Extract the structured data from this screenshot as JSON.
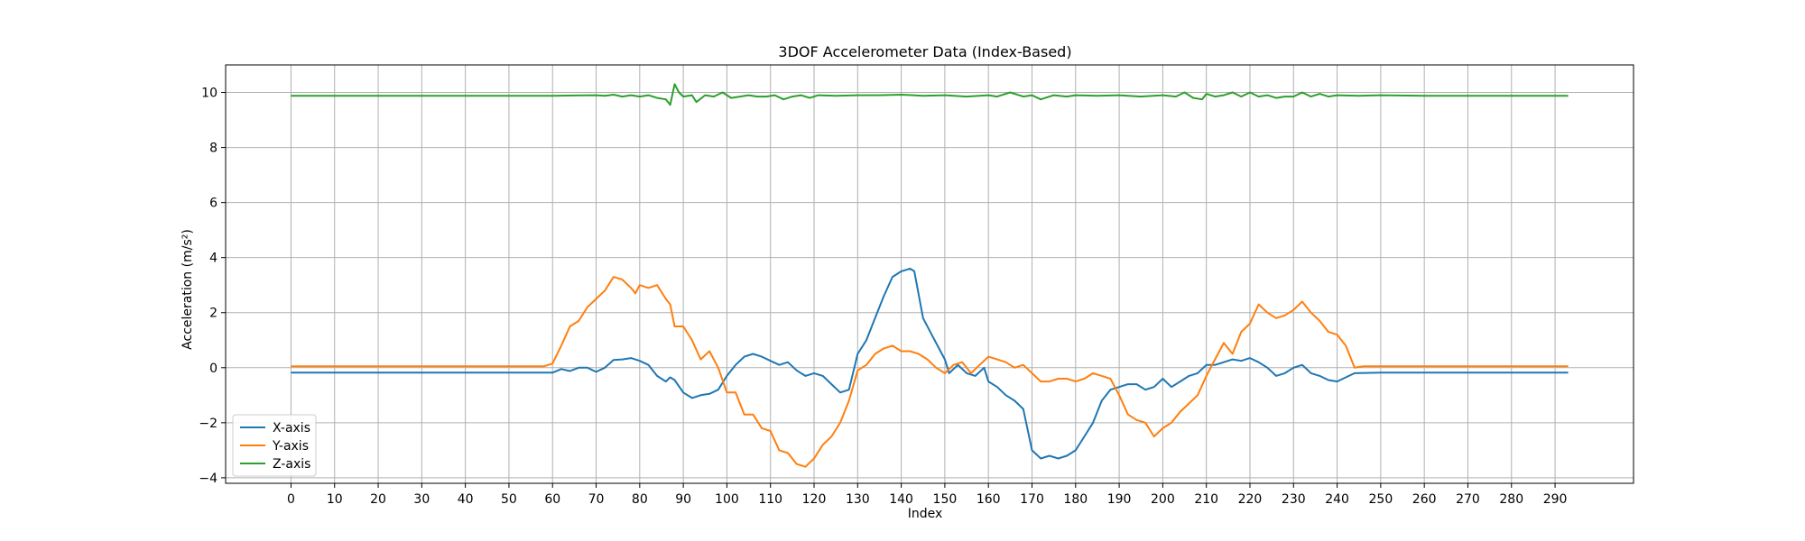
{
  "chart_data": {
    "type": "line",
    "title": "3DOF Accelerometer Data (Index-Based)",
    "xlabel": "Index",
    "ylabel": "Acceleration (m/s²)",
    "xlim": [
      -15,
      308
    ],
    "ylim": [
      -4.2,
      11.0
    ],
    "xticks": [
      0,
      10,
      20,
      30,
      40,
      50,
      60,
      70,
      80,
      90,
      100,
      110,
      120,
      130,
      140,
      150,
      160,
      170,
      180,
      190,
      200,
      210,
      220,
      230,
      240,
      250,
      260,
      270,
      280,
      290
    ],
    "yticks": [
      -4,
      -2,
      0,
      2,
      4,
      6,
      8,
      10
    ],
    "grid": true,
    "legend_position": "lower-left",
    "series": [
      {
        "name": "X-axis",
        "color": "#1f77b4",
        "points": [
          [
            0,
            -0.18
          ],
          [
            10,
            -0.18
          ],
          [
            20,
            -0.18
          ],
          [
            30,
            -0.18
          ],
          [
            40,
            -0.18
          ],
          [
            50,
            -0.18
          ],
          [
            60,
            -0.18
          ],
          [
            62,
            -0.05
          ],
          [
            64,
            -0.12
          ],
          [
            66,
            0.0
          ],
          [
            68,
            0.0
          ],
          [
            70,
            -0.15
          ],
          [
            72,
            0.0
          ],
          [
            74,
            0.28
          ],
          [
            76,
            0.3
          ],
          [
            78,
            0.35
          ],
          [
            80,
            0.25
          ],
          [
            82,
            0.1
          ],
          [
            84,
            -0.3
          ],
          [
            86,
            -0.5
          ],
          [
            87,
            -0.35
          ],
          [
            88,
            -0.45
          ],
          [
            90,
            -0.9
          ],
          [
            92,
            -1.1
          ],
          [
            94,
            -1.0
          ],
          [
            96,
            -0.95
          ],
          [
            98,
            -0.8
          ],
          [
            100,
            -0.3
          ],
          [
            102,
            0.1
          ],
          [
            104,
            0.4
          ],
          [
            106,
            0.5
          ],
          [
            108,
            0.4
          ],
          [
            110,
            0.25
          ],
          [
            112,
            0.1
          ],
          [
            114,
            0.2
          ],
          [
            116,
            -0.1
          ],
          [
            118,
            -0.3
          ],
          [
            120,
            -0.2
          ],
          [
            122,
            -0.3
          ],
          [
            124,
            -0.6
          ],
          [
            126,
            -0.9
          ],
          [
            128,
            -0.8
          ],
          [
            130,
            0.5
          ],
          [
            132,
            1.0
          ],
          [
            134,
            1.8
          ],
          [
            136,
            2.6
          ],
          [
            138,
            3.3
          ],
          [
            140,
            3.5
          ],
          [
            142,
            3.6
          ],
          [
            143,
            3.5
          ],
          [
            145,
            1.8
          ],
          [
            147,
            1.2
          ],
          [
            149,
            0.6
          ],
          [
            150,
            0.3
          ],
          [
            151,
            -0.2
          ],
          [
            153,
            0.1
          ],
          [
            155,
            -0.2
          ],
          [
            157,
            -0.3
          ],
          [
            159,
            0.0
          ],
          [
            160,
            -0.5
          ],
          [
            162,
            -0.7
          ],
          [
            164,
            -1.0
          ],
          [
            166,
            -1.2
          ],
          [
            168,
            -1.5
          ],
          [
            170,
            -3.0
          ],
          [
            172,
            -3.3
          ],
          [
            174,
            -3.2
          ],
          [
            176,
            -3.3
          ],
          [
            178,
            -3.2
          ],
          [
            180,
            -3.0
          ],
          [
            182,
            -2.5
          ],
          [
            184,
            -2.0
          ],
          [
            186,
            -1.2
          ],
          [
            188,
            -0.8
          ],
          [
            190,
            -0.7
          ],
          [
            192,
            -0.6
          ],
          [
            194,
            -0.6
          ],
          [
            196,
            -0.8
          ],
          [
            198,
            -0.7
          ],
          [
            200,
            -0.4
          ],
          [
            202,
            -0.7
          ],
          [
            204,
            -0.5
          ],
          [
            206,
            -0.3
          ],
          [
            208,
            -0.2
          ],
          [
            210,
            0.1
          ],
          [
            212,
            0.1
          ],
          [
            214,
            0.2
          ],
          [
            216,
            0.3
          ],
          [
            218,
            0.25
          ],
          [
            220,
            0.35
          ],
          [
            222,
            0.2
          ],
          [
            224,
            0.0
          ],
          [
            226,
            -0.3
          ],
          [
            228,
            -0.2
          ],
          [
            230,
            0.0
          ],
          [
            232,
            0.1
          ],
          [
            234,
            -0.2
          ],
          [
            236,
            -0.3
          ],
          [
            238,
            -0.45
          ],
          [
            240,
            -0.5
          ],
          [
            242,
            -0.35
          ],
          [
            244,
            -0.2
          ],
          [
            250,
            -0.18
          ],
          [
            260,
            -0.18
          ],
          [
            270,
            -0.18
          ],
          [
            280,
            -0.18
          ],
          [
            290,
            -0.18
          ],
          [
            293,
            -0.18
          ]
        ]
      },
      {
        "name": "Y-axis",
        "color": "#ff7f0e",
        "points": [
          [
            0,
            0.05
          ],
          [
            10,
            0.05
          ],
          [
            20,
            0.05
          ],
          [
            30,
            0.05
          ],
          [
            40,
            0.05
          ],
          [
            50,
            0.05
          ],
          [
            58,
            0.05
          ],
          [
            60,
            0.15
          ],
          [
            62,
            0.8
          ],
          [
            64,
            1.5
          ],
          [
            66,
            1.7
          ],
          [
            68,
            2.2
          ],
          [
            70,
            2.5
          ],
          [
            72,
            2.8
          ],
          [
            74,
            3.3
          ],
          [
            76,
            3.2
          ],
          [
            78,
            2.9
          ],
          [
            79,
            2.7
          ],
          [
            80,
            3.0
          ],
          [
            82,
            2.9
          ],
          [
            84,
            3.0
          ],
          [
            86,
            2.5
          ],
          [
            87,
            2.3
          ],
          [
            88,
            1.5
          ],
          [
            90,
            1.5
          ],
          [
            92,
            1.0
          ],
          [
            94,
            0.3
          ],
          [
            96,
            0.6
          ],
          [
            98,
            0.0
          ],
          [
            100,
            -0.9
          ],
          [
            102,
            -0.9
          ],
          [
            104,
            -1.7
          ],
          [
            106,
            -1.7
          ],
          [
            108,
            -2.2
          ],
          [
            110,
            -2.3
          ],
          [
            112,
            -3.0
          ],
          [
            114,
            -3.1
          ],
          [
            116,
            -3.5
          ],
          [
            118,
            -3.6
          ],
          [
            120,
            -3.3
          ],
          [
            122,
            -2.8
          ],
          [
            124,
            -2.5
          ],
          [
            126,
            -2.0
          ],
          [
            128,
            -1.2
          ],
          [
            130,
            -0.1
          ],
          [
            132,
            0.1
          ],
          [
            134,
            0.5
          ],
          [
            136,
            0.7
          ],
          [
            138,
            0.8
          ],
          [
            140,
            0.6
          ],
          [
            142,
            0.6
          ],
          [
            144,
            0.5
          ],
          [
            146,
            0.3
          ],
          [
            148,
            0.0
          ],
          [
            150,
            -0.2
          ],
          [
            152,
            0.1
          ],
          [
            154,
            0.2
          ],
          [
            156,
            -0.2
          ],
          [
            158,
            0.1
          ],
          [
            160,
            0.4
          ],
          [
            162,
            0.3
          ],
          [
            164,
            0.2
          ],
          [
            166,
            0.0
          ],
          [
            168,
            0.1
          ],
          [
            170,
            -0.2
          ],
          [
            172,
            -0.5
          ],
          [
            174,
            -0.5
          ],
          [
            176,
            -0.4
          ],
          [
            178,
            -0.4
          ],
          [
            180,
            -0.5
          ],
          [
            182,
            -0.4
          ],
          [
            184,
            -0.2
          ],
          [
            186,
            -0.3
          ],
          [
            188,
            -0.4
          ],
          [
            190,
            -1.0
          ],
          [
            192,
            -1.7
          ],
          [
            194,
            -1.9
          ],
          [
            196,
            -2.0
          ],
          [
            198,
            -2.5
          ],
          [
            200,
            -2.2
          ],
          [
            202,
            -2.0
          ],
          [
            204,
            -1.6
          ],
          [
            206,
            -1.3
          ],
          [
            208,
            -1.0
          ],
          [
            210,
            -0.3
          ],
          [
            212,
            0.3
          ],
          [
            214,
            0.9
          ],
          [
            216,
            0.5
          ],
          [
            218,
            1.3
          ],
          [
            220,
            1.6
          ],
          [
            222,
            2.3
          ],
          [
            224,
            2.0
          ],
          [
            226,
            1.8
          ],
          [
            228,
            1.9
          ],
          [
            230,
            2.1
          ],
          [
            232,
            2.4
          ],
          [
            234,
            2.0
          ],
          [
            236,
            1.7
          ],
          [
            238,
            1.3
          ],
          [
            240,
            1.2
          ],
          [
            242,
            0.8
          ],
          [
            244,
            0.0
          ],
          [
            246,
            0.05
          ],
          [
            250,
            0.05
          ],
          [
            260,
            0.05
          ],
          [
            270,
            0.05
          ],
          [
            280,
            0.05
          ],
          [
            290,
            0.05
          ],
          [
            293,
            0.05
          ]
        ]
      },
      {
        "name": "Z-axis",
        "color": "#2ca02c",
        "points": [
          [
            0,
            9.88
          ],
          [
            10,
            9.88
          ],
          [
            20,
            9.88
          ],
          [
            30,
            9.88
          ],
          [
            40,
            9.88
          ],
          [
            50,
            9.88
          ],
          [
            60,
            9.88
          ],
          [
            70,
            9.9
          ],
          [
            72,
            9.88
          ],
          [
            74,
            9.92
          ],
          [
            76,
            9.85
          ],
          [
            78,
            9.9
          ],
          [
            80,
            9.85
          ],
          [
            82,
            9.9
          ],
          [
            84,
            9.8
          ],
          [
            86,
            9.75
          ],
          [
            87,
            9.55
          ],
          [
            88,
            10.3
          ],
          [
            89,
            10.0
          ],
          [
            90,
            9.85
          ],
          [
            92,
            9.9
          ],
          [
            93,
            9.65
          ],
          [
            95,
            9.9
          ],
          [
            97,
            9.85
          ],
          [
            99,
            10.0
          ],
          [
            101,
            9.8
          ],
          [
            103,
            9.85
          ],
          [
            105,
            9.9
          ],
          [
            107,
            9.85
          ],
          [
            109,
            9.85
          ],
          [
            111,
            9.9
          ],
          [
            113,
            9.75
          ],
          [
            115,
            9.85
          ],
          [
            117,
            9.9
          ],
          [
            119,
            9.8
          ],
          [
            121,
            9.9
          ],
          [
            125,
            9.88
          ],
          [
            130,
            9.9
          ],
          [
            135,
            9.9
          ],
          [
            140,
            9.92
          ],
          [
            145,
            9.88
          ],
          [
            150,
            9.9
          ],
          [
            155,
            9.85
          ],
          [
            160,
            9.9
          ],
          [
            162,
            9.85
          ],
          [
            165,
            10.0
          ],
          [
            168,
            9.85
          ],
          [
            170,
            9.9
          ],
          [
            172,
            9.75
          ],
          [
            175,
            9.9
          ],
          [
            178,
            9.85
          ],
          [
            180,
            9.9
          ],
          [
            185,
            9.88
          ],
          [
            190,
            9.9
          ],
          [
            195,
            9.85
          ],
          [
            200,
            9.9
          ],
          [
            203,
            9.85
          ],
          [
            205,
            10.0
          ],
          [
            207,
            9.8
          ],
          [
            209,
            9.75
          ],
          [
            210,
            9.95
          ],
          [
            212,
            9.85
          ],
          [
            214,
            9.9
          ],
          [
            216,
            10.0
          ],
          [
            218,
            9.85
          ],
          [
            220,
            10.0
          ],
          [
            222,
            9.85
          ],
          [
            224,
            9.9
          ],
          [
            226,
            9.8
          ],
          [
            228,
            9.85
          ],
          [
            230,
            9.85
          ],
          [
            232,
            10.0
          ],
          [
            234,
            9.85
          ],
          [
            236,
            9.95
          ],
          [
            238,
            9.85
          ],
          [
            240,
            9.9
          ],
          [
            245,
            9.88
          ],
          [
            250,
            9.9
          ],
          [
            260,
            9.88
          ],
          [
            270,
            9.88
          ],
          [
            280,
            9.88
          ],
          [
            290,
            9.88
          ],
          [
            293,
            9.88
          ]
        ]
      }
    ]
  }
}
